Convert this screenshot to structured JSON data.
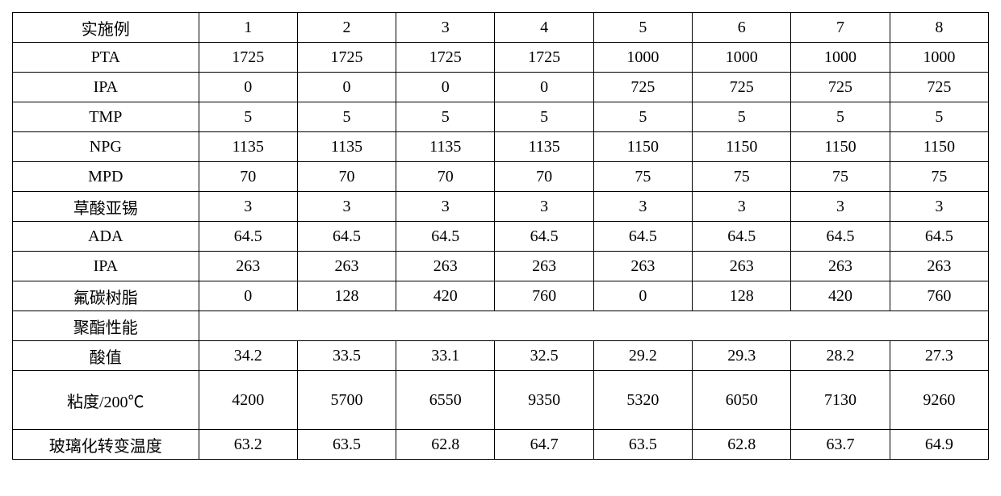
{
  "table": {
    "background_color": "#ffffff",
    "border_color": "#000000",
    "font_family": "SimSun",
    "header_fontsize": 20,
    "cell_fontsize": 20,
    "columns": [
      "实施例",
      "1",
      "2",
      "3",
      "4",
      "5",
      "6",
      "7",
      "8"
    ],
    "rows": [
      {
        "label": "PTA",
        "values": [
          "1725",
          "1725",
          "1725",
          "1725",
          "1000",
          "1000",
          "1000",
          "1000"
        ]
      },
      {
        "label": "IPA",
        "values": [
          "0",
          "0",
          "0",
          "0",
          "725",
          "725",
          "725",
          "725"
        ]
      },
      {
        "label": "TMP",
        "values": [
          "5",
          "5",
          "5",
          "5",
          "5",
          "5",
          "5",
          "5"
        ]
      },
      {
        "label": "NPG",
        "values": [
          "1135",
          "1135",
          "1135",
          "1135",
          "1150",
          "1150",
          "1150",
          "1150"
        ]
      },
      {
        "label": "MPD",
        "values": [
          "70",
          "70",
          "70",
          "70",
          "75",
          "75",
          "75",
          "75"
        ]
      },
      {
        "label": "草酸亚锡",
        "values": [
          "3",
          "3",
          "3",
          "3",
          "3",
          "3",
          "3",
          "3"
        ]
      },
      {
        "label": "ADA",
        "values": [
          "64.5",
          "64.5",
          "64.5",
          "64.5",
          "64.5",
          "64.5",
          "64.5",
          "64.5"
        ]
      },
      {
        "label": "IPA",
        "values": [
          "263",
          "263",
          "263",
          "263",
          "263",
          "263",
          "263",
          "263"
        ]
      },
      {
        "label": "氟碳树脂",
        "values": [
          "0",
          "128",
          "420",
          "760",
          "0",
          "128",
          "420",
          "760"
        ]
      }
    ],
    "section_label": "聚酯性能",
    "result_rows": [
      {
        "label": "酸值",
        "tall": false,
        "values": [
          "34.2",
          "33.5",
          "33.1",
          "32.5",
          "29.2",
          "29.3",
          "28.2",
          "27.3"
        ]
      },
      {
        "label": "粘度/200℃",
        "tall": true,
        "values": [
          "4200",
          "5700",
          "6550",
          "9350",
          "5320",
          "6050",
          "7130",
          "9260"
        ]
      },
      {
        "label": "玻璃化转变温度",
        "tall": false,
        "values": [
          "63.2",
          "63.5",
          "62.8",
          "64.7",
          "63.5",
          "62.8",
          "63.7",
          "64.9"
        ]
      }
    ]
  }
}
